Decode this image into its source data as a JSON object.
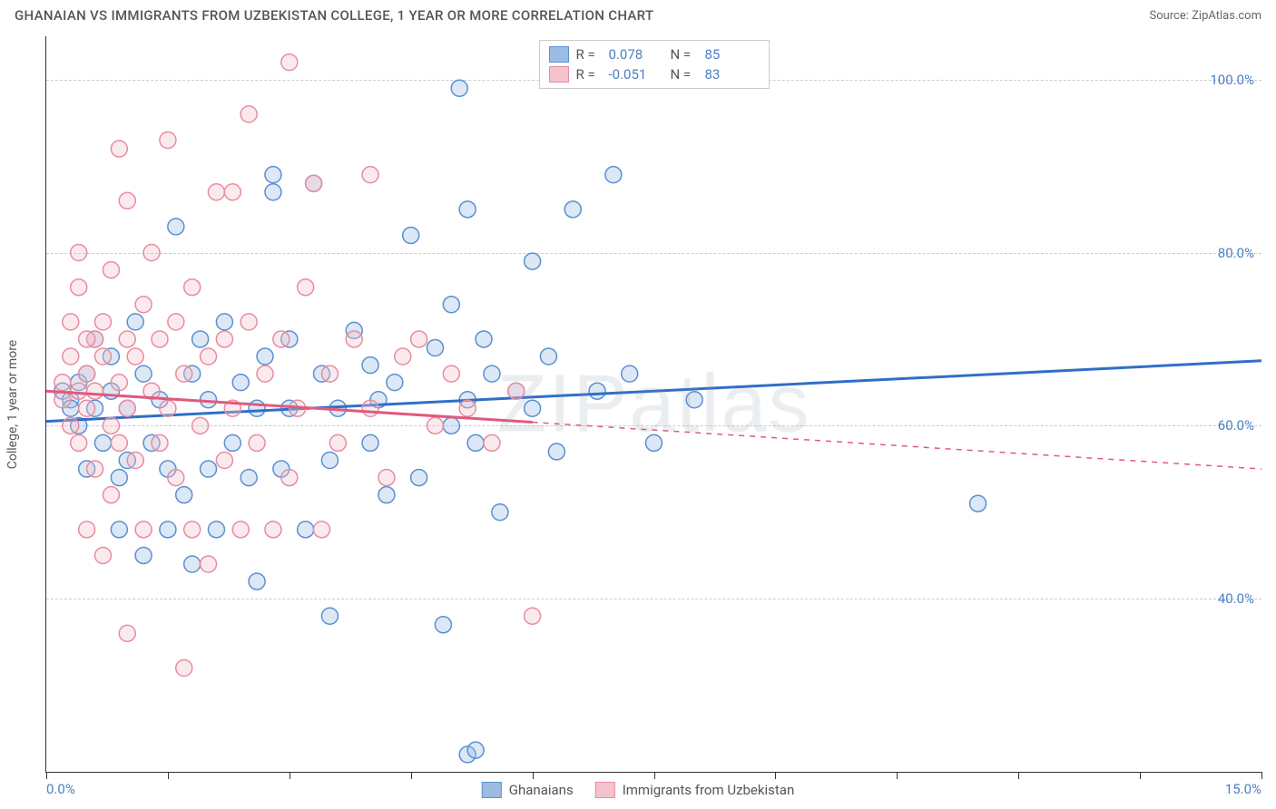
{
  "header": {
    "title": "GHANAIAN VS IMMIGRANTS FROM UZBEKISTAN COLLEGE, 1 YEAR OR MORE CORRELATION CHART",
    "source": "Source: ZipAtlas.com"
  },
  "chart": {
    "type": "scatter",
    "y_axis_label": "College, 1 year or more",
    "xlim": [
      0,
      15
    ],
    "ylim": [
      20,
      105
    ],
    "x_tick_interval": 1.5,
    "x_tick_labels": {
      "0": "0.0%",
      "15": "15.0%"
    },
    "y_gridlines": [
      40,
      60,
      80,
      100
    ],
    "y_tick_labels": {
      "40": "40.0%",
      "60": "60.0%",
      "80": "80.0%",
      "100": "100.0%"
    },
    "background_color": "#ffffff",
    "grid_color": "#cccccc",
    "axis_color": "#333333",
    "tick_label_color": "#4a7fc5",
    "marker_radius": 9,
    "marker_stroke_width": 1.5,
    "marker_fill_opacity": 0.35,
    "watermark": "ZIPatlas",
    "series": [
      {
        "name": "Ghanaians",
        "fill_color": "#9cbce4",
        "stroke_color": "#5b8fd1",
        "trend_line_color": "#2f6fc7",
        "trend_line_width": 3,
        "trend_style_solid_until_x": 15,
        "r_value": "0.078",
        "n_value": "85",
        "trend": {
          "x1": 0,
          "y1": 60.5,
          "x2": 15,
          "y2": 67.5
        },
        "points": [
          [
            0.2,
            64
          ],
          [
            0.3,
            63
          ],
          [
            0.3,
            62
          ],
          [
            0.4,
            65
          ],
          [
            0.4,
            60
          ],
          [
            0.5,
            66
          ],
          [
            0.5,
            55
          ],
          [
            0.6,
            70
          ],
          [
            0.6,
            62
          ],
          [
            0.7,
            58
          ],
          [
            0.8,
            64
          ],
          [
            0.8,
            68
          ],
          [
            0.9,
            54
          ],
          [
            0.9,
            48
          ],
          [
            1.0,
            56
          ],
          [
            1.0,
            62
          ],
          [
            1.1,
            72
          ],
          [
            1.2,
            66
          ],
          [
            1.2,
            45
          ],
          [
            1.3,
            58
          ],
          [
            1.4,
            63
          ],
          [
            1.5,
            48
          ],
          [
            1.5,
            55
          ],
          [
            1.6,
            83
          ],
          [
            1.7,
            52
          ],
          [
            1.8,
            66
          ],
          [
            1.8,
            44
          ],
          [
            1.9,
            70
          ],
          [
            2.0,
            55
          ],
          [
            2.0,
            63
          ],
          [
            2.1,
            48
          ],
          [
            2.2,
            72
          ],
          [
            2.3,
            58
          ],
          [
            2.4,
            65
          ],
          [
            2.5,
            54
          ],
          [
            2.6,
            42
          ],
          [
            2.7,
            68
          ],
          [
            2.8,
            87
          ],
          [
            2.8,
            89
          ],
          [
            2.9,
            55
          ],
          [
            3.0,
            62
          ],
          [
            3.0,
            70
          ],
          [
            3.2,
            48
          ],
          [
            3.3,
            88
          ],
          [
            3.4,
            66
          ],
          [
            3.5,
            56
          ],
          [
            3.6,
            62
          ],
          [
            3.8,
            71
          ],
          [
            4.0,
            58
          ],
          [
            4.0,
            67
          ],
          [
            4.1,
            63
          ],
          [
            4.2,
            52
          ],
          [
            4.3,
            65
          ],
          [
            4.5,
            82
          ],
          [
            4.6,
            54
          ],
          [
            4.8,
            69
          ],
          [
            4.9,
            37
          ],
          [
            5.0,
            60
          ],
          [
            5.0,
            74
          ],
          [
            5.1,
            99
          ],
          [
            5.2,
            63
          ],
          [
            5.2,
            85
          ],
          [
            5.3,
            58
          ],
          [
            5.4,
            70
          ],
          [
            5.5,
            66
          ],
          [
            5.6,
            50
          ],
          [
            5.8,
            64
          ],
          [
            6.0,
            62
          ],
          [
            6.0,
            79
          ],
          [
            6.2,
            68
          ],
          [
            6.3,
            57
          ],
          [
            6.5,
            85
          ],
          [
            6.8,
            64
          ],
          [
            7.0,
            89
          ],
          [
            7.2,
            66
          ],
          [
            7.5,
            58
          ],
          [
            8.0,
            63
          ],
          [
            5.2,
            22
          ],
          [
            5.3,
            22.5
          ],
          [
            11.5,
            51
          ],
          [
            3.5,
            38
          ],
          [
            2.6,
            62
          ]
        ]
      },
      {
        "name": "Immigrants from Uzbekistan",
        "fill_color": "#f4c2cc",
        "stroke_color": "#e88ca0",
        "trend_line_color": "#e05a7e",
        "trend_line_width": 3,
        "trend_style_solid_until_x": 6,
        "r_value": "-0.051",
        "n_value": "83",
        "trend": {
          "x1": 0,
          "y1": 64,
          "x2": 15,
          "y2": 55
        },
        "points": [
          [
            0.2,
            63
          ],
          [
            0.2,
            65
          ],
          [
            0.3,
            72
          ],
          [
            0.3,
            68
          ],
          [
            0.3,
            60
          ],
          [
            0.4,
            64
          ],
          [
            0.4,
            58
          ],
          [
            0.4,
            76
          ],
          [
            0.5,
            66
          ],
          [
            0.5,
            62
          ],
          [
            0.5,
            48
          ],
          [
            0.6,
            70
          ],
          [
            0.6,
            55
          ],
          [
            0.6,
            64
          ],
          [
            0.7,
            68
          ],
          [
            0.7,
            45
          ],
          [
            0.7,
            72
          ],
          [
            0.8,
            60
          ],
          [
            0.8,
            78
          ],
          [
            0.8,
            52
          ],
          [
            0.9,
            65
          ],
          [
            0.9,
            92
          ],
          [
            0.9,
            58
          ],
          [
            1.0,
            70
          ],
          [
            1.0,
            62
          ],
          [
            1.0,
            86
          ],
          [
            1.1,
            56
          ],
          [
            1.1,
            68
          ],
          [
            1.2,
            74
          ],
          [
            1.2,
            48
          ],
          [
            1.3,
            64
          ],
          [
            1.3,
            80
          ],
          [
            1.4,
            58
          ],
          [
            1.4,
            70
          ],
          [
            1.5,
            93
          ],
          [
            1.5,
            62
          ],
          [
            1.6,
            54
          ],
          [
            1.6,
            72
          ],
          [
            1.7,
            66
          ],
          [
            1.8,
            48
          ],
          [
            1.8,
            76
          ],
          [
            1.9,
            60
          ],
          [
            2.0,
            68
          ],
          [
            2.0,
            44
          ],
          [
            2.1,
            87
          ],
          [
            2.2,
            56
          ],
          [
            2.2,
            70
          ],
          [
            2.3,
            62
          ],
          [
            2.4,
            48
          ],
          [
            2.5,
            72
          ],
          [
            2.5,
            96
          ],
          [
            2.6,
            58
          ],
          [
            2.7,
            66
          ],
          [
            2.8,
            48
          ],
          [
            2.9,
            70
          ],
          [
            3.0,
            54
          ],
          [
            3.0,
            102
          ],
          [
            3.1,
            62
          ],
          [
            3.2,
            76
          ],
          [
            3.3,
            88
          ],
          [
            3.4,
            48
          ],
          [
            3.5,
            66
          ],
          [
            3.6,
            58
          ],
          [
            3.8,
            70
          ],
          [
            4.0,
            89
          ],
          [
            4.0,
            62
          ],
          [
            4.2,
            54
          ],
          [
            4.4,
            68
          ],
          [
            4.6,
            70
          ],
          [
            4.8,
            60
          ],
          [
            5.0,
            66
          ],
          [
            5.2,
            62
          ],
          [
            5.5,
            58
          ],
          [
            5.8,
            64
          ],
          [
            6.0,
            38
          ],
          [
            1.7,
            32
          ],
          [
            1.0,
            36
          ],
          [
            2.3,
            87
          ],
          [
            0.4,
            80
          ],
          [
            0.5,
            70
          ]
        ]
      }
    ]
  },
  "legend_top": {
    "r_label": "R =",
    "n_label": "N ="
  },
  "legend_bottom": {
    "items": [
      "Ghanaians",
      "Immigrants from Uzbekistan"
    ]
  }
}
